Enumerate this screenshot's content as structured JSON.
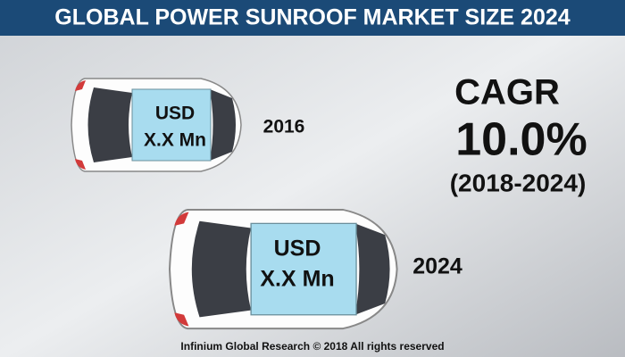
{
  "header": {
    "title": "GLOBAL POWER SUNROOF MARKET SIZE 2024"
  },
  "cars": [
    {
      "currency": "USD",
      "value": "X.X Mn",
      "year": "2016"
    },
    {
      "currency": "USD",
      "value": "X.X Mn",
      "year": "2024"
    }
  ],
  "cagr": {
    "label": "CAGR",
    "value": "10.0%",
    "period": "(2018-2024)"
  },
  "footer": {
    "text": "Infinium Global Research © 2018 All rights reserved"
  }
}
